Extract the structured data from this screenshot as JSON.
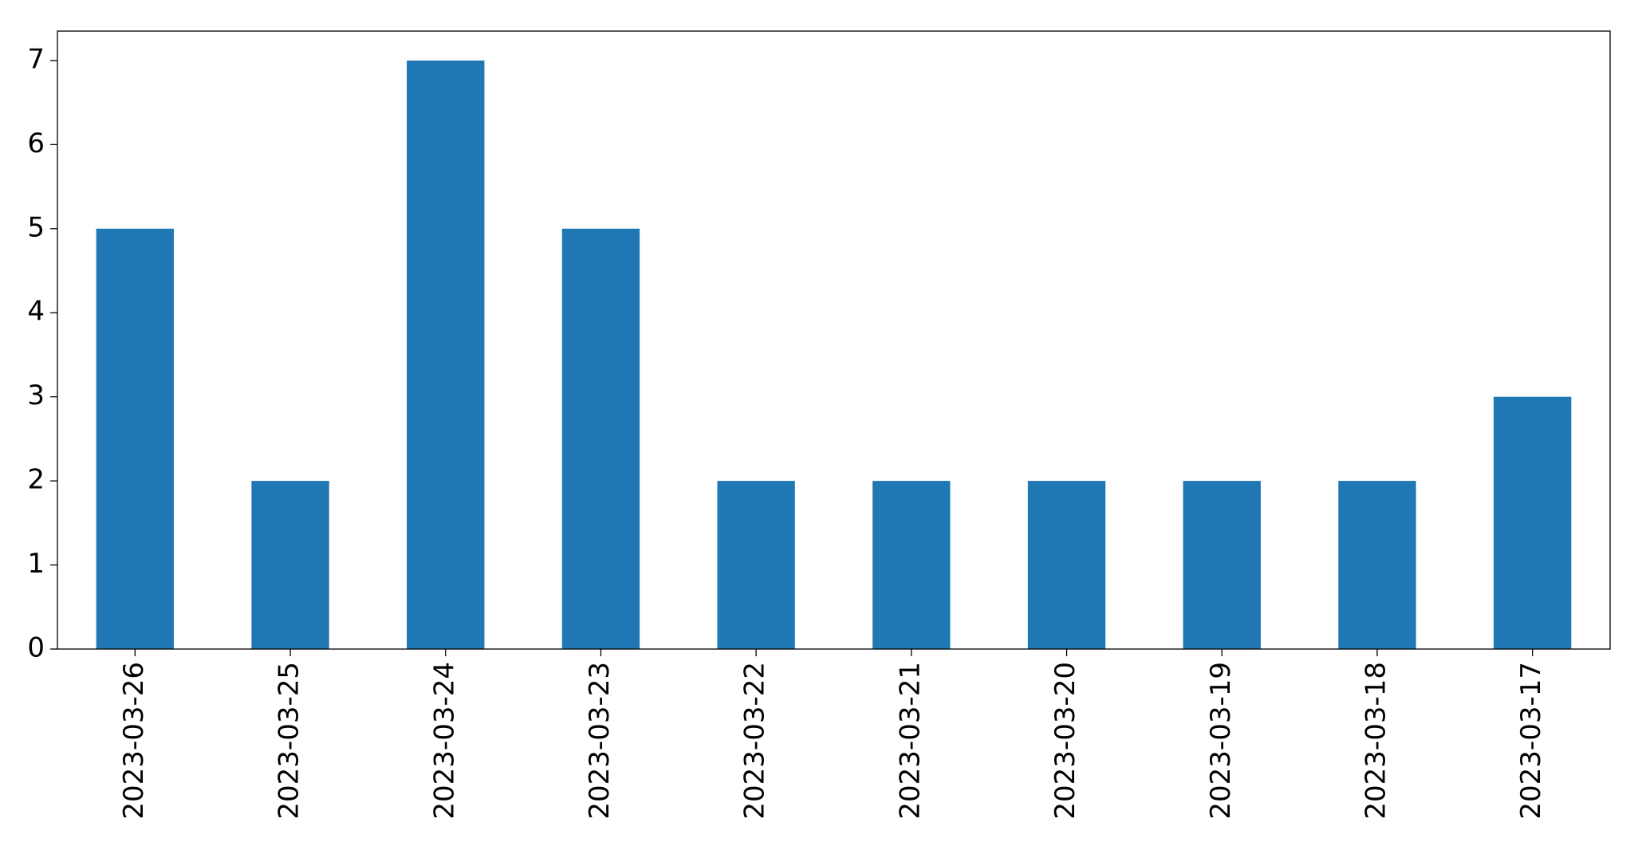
{
  "chart_data": {
    "type": "bar",
    "categories": [
      "2023-03-26",
      "2023-03-25",
      "2023-03-24",
      "2023-03-23",
      "2023-03-22",
      "2023-03-21",
      "2023-03-20",
      "2023-03-19",
      "2023-03-18",
      "2023-03-17"
    ],
    "values": [
      5,
      2,
      7,
      5,
      2,
      2,
      2,
      2,
      2,
      3
    ],
    "color": "#1f77b4",
    "ylim": [
      0,
      7.35
    ],
    "yticks": [
      0,
      1,
      2,
      3,
      4,
      5,
      6,
      7
    ],
    "grid": false
  }
}
